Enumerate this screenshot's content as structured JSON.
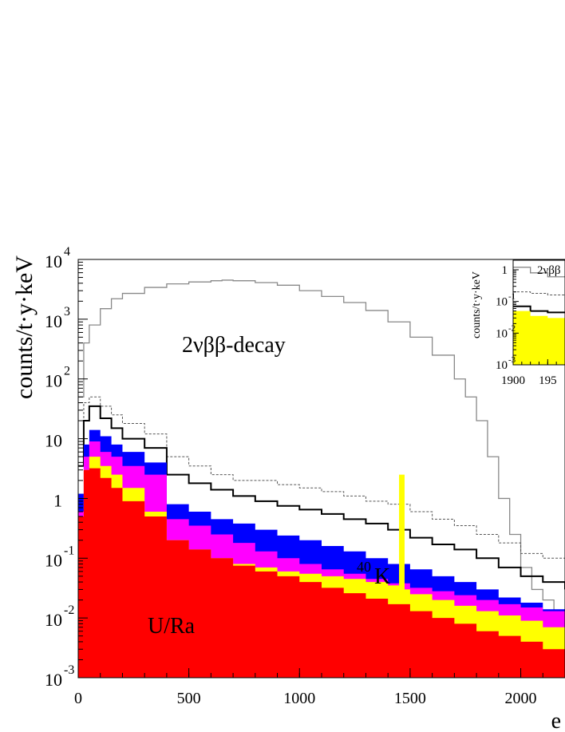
{
  "chart_data": [
    {
      "type": "area",
      "title": "",
      "ylabel": "counts/t·y·keV",
      "xlabel_visible": "e",
      "x_ticks": [
        "0",
        "500",
        "1000",
        "1500",
        "2000"
      ],
      "y_scale": "log",
      "y_ticks": [
        {
          "base": "10",
          "exp": "-3"
        },
        {
          "base": "10",
          "exp": "-2"
        },
        {
          "base": "10",
          "exp": "-1"
        },
        {
          "base": "1",
          "exp": ""
        },
        {
          "base": "10",
          "exp": ""
        },
        {
          "base": "10",
          "exp": "2"
        },
        {
          "base": "10",
          "exp": "3"
        },
        {
          "base": "10",
          "exp": "4"
        }
      ],
      "xlim": [
        0,
        2200
      ],
      "ylim": [
        0.001,
        10000
      ],
      "grid": false,
      "annotations": {
        "two_nu": "2νββ-decay",
        "uranium": "U/Ra",
        "potassium_sup": "40",
        "potassium": "K"
      },
      "colors": {
        "red": "#ff0000",
        "magenta": "#ff00ff",
        "blue": "#0000ff",
        "yellow": "#ffff00",
        "total": "#000000",
        "two_nu": "#888888"
      },
      "bin_width": 25,
      "series": [
        {
          "key": "two_nu",
          "style": "step-gray",
          "x": [
            0,
            25,
            50,
            100,
            150,
            200,
            300,
            400,
            500,
            600,
            650,
            700,
            800,
            900,
            1000,
            1100,
            1200,
            1300,
            1400,
            1500,
            1600,
            1700,
            1750,
            1800,
            1850,
            1900,
            1950,
            2000,
            2050,
            2100,
            2150,
            2200
          ],
          "y": [
            50,
            400,
            800,
            1500,
            2200,
            2700,
            3400,
            3900,
            4200,
            4400,
            4500,
            4400,
            4100,
            3700,
            3000,
            2400,
            1900,
            1400,
            900,
            500,
            250,
            100,
            50,
            20,
            5,
            1,
            0.25,
            0.07,
            0.03,
            0.02,
            0.01,
            0.01
          ]
        },
        {
          "key": "total_dashed",
          "style": "step-dashed",
          "x": [
            0,
            25,
            50,
            100,
            150,
            200,
            300,
            400,
            500,
            600,
            700,
            800,
            900,
            1000,
            1100,
            1200,
            1300,
            1400,
            1500,
            1600,
            1700,
            1800,
            1900,
            2000,
            2100,
            2200
          ],
          "y": [
            5,
            40,
            50,
            35,
            25,
            18,
            12,
            5,
            3.5,
            2.5,
            2,
            2,
            1.7,
            1.5,
            1.3,
            1.1,
            0.9,
            0.8,
            0.6,
            0.45,
            0.35,
            0.25,
            0.18,
            0.12,
            0.1,
            0.08
          ]
        },
        {
          "key": "total",
          "style": "step-black",
          "x": [
            0,
            25,
            50,
            100,
            150,
            200,
            300,
            400,
            500,
            600,
            700,
            800,
            900,
            1000,
            1100,
            1200,
            1300,
            1400,
            1500,
            1600,
            1700,
            1800,
            1900,
            2000,
            2100,
            2200
          ],
          "y": [
            3.5,
            20,
            35,
            22,
            15,
            10,
            7,
            2.5,
            1.8,
            1.4,
            1.1,
            0.9,
            0.75,
            0.65,
            0.55,
            0.45,
            0.38,
            0.3,
            0.22,
            0.17,
            0.14,
            0.1,
            0.07,
            0.05,
            0.04,
            0.03
          ]
        },
        {
          "key": "blue",
          "style": "fill",
          "x": [
            0,
            25,
            50,
            100,
            150,
            200,
            300,
            400,
            500,
            600,
            700,
            800,
            900,
            1000,
            1100,
            1200,
            1300,
            1400,
            1500,
            1600,
            1700,
            1800,
            1900,
            2000,
            2100,
            2200
          ],
          "y": [
            1.2,
            8,
            14,
            11,
            8,
            6,
            4,
            0.8,
            0.6,
            0.45,
            0.38,
            0.3,
            0.24,
            0.2,
            0.16,
            0.13,
            0.1,
            0.08,
            0.065,
            0.05,
            0.04,
            0.03,
            0.022,
            0.018,
            0.014,
            0.012
          ]
        },
        {
          "key": "magenta",
          "style": "fill",
          "x": [
            0,
            25,
            50,
            100,
            150,
            200,
            300,
            400,
            500,
            600,
            700,
            800,
            900,
            1000,
            1100,
            1200,
            1300,
            1400,
            1500,
            1600,
            1700,
            1800,
            1900,
            2000,
            2100,
            2200
          ],
          "y": [
            0.6,
            5,
            9,
            6,
            5,
            3.5,
            2.5,
            0.45,
            0.35,
            0.25,
            0.18,
            0.13,
            0.1,
            0.08,
            0.065,
            0.055,
            0.045,
            0.038,
            0.032,
            0.028,
            0.024,
            0.02,
            0.017,
            0.015,
            0.013,
            0.011
          ]
        },
        {
          "key": "yellow",
          "style": "fill",
          "x": [
            0,
            25,
            50,
            100,
            150,
            200,
            300,
            400,
            500,
            600,
            700,
            800,
            900,
            1000,
            1100,
            1200,
            1300,
            1400,
            1450,
            1475,
            1500,
            1600,
            1700,
            1800,
            1900,
            2000,
            2100,
            2200
          ],
          "y": [
            0.5,
            3,
            5,
            3.5,
            2.5,
            1.5,
            0.6,
            0.2,
            0.14,
            0.1,
            0.08,
            0.07,
            0.06,
            0.055,
            0.05,
            0.045,
            0.04,
            0.035,
            2.5,
            0.03,
            0.025,
            0.02,
            0.016,
            0.013,
            0.011,
            0.009,
            0.007,
            0.006
          ]
        },
        {
          "key": "red",
          "style": "fill",
          "x": [
            0,
            25,
            50,
            100,
            150,
            200,
            300,
            400,
            500,
            600,
            700,
            800,
            900,
            1000,
            1100,
            1200,
            1300,
            1400,
            1500,
            1600,
            1700,
            1800,
            1900,
            2000,
            2100,
            2200
          ],
          "y": [
            0.5,
            3,
            3.2,
            2.2,
            1.5,
            0.9,
            0.5,
            0.2,
            0.14,
            0.1,
            0.075,
            0.06,
            0.05,
            0.04,
            0.032,
            0.026,
            0.021,
            0.017,
            0.013,
            0.01,
            0.008,
            0.006,
            0.005,
            0.004,
            0.003,
            0.0025
          ]
        }
      ]
    },
    {
      "type": "area",
      "title": "",
      "ylabel": "counts/t·y·keV",
      "x_ticks": [
        "1900",
        "195"
      ],
      "y_scale": "log",
      "y_ticks": [
        {
          "base": "10",
          "exp": "-3"
        },
        {
          "base": "10",
          "exp": "-2"
        },
        {
          "base": "10",
          "exp": "-1"
        },
        {
          "base": "1",
          "exp": ""
        }
      ],
      "xlim": [
        1900,
        1975
      ],
      "ylim": [
        0.001,
        2
      ],
      "annotations": {
        "two_nu": "2νββ"
      },
      "series": [
        {
          "key": "two_nu",
          "style": "step-gray",
          "x": [
            1900,
            1925,
            1950
          ],
          "y": [
            1.2,
            0.8,
            0.6
          ]
        },
        {
          "key": "total_dashed",
          "style": "step-dashed",
          "x": [
            1900,
            1925,
            1950
          ],
          "y": [
            0.2,
            0.18,
            0.16
          ]
        },
        {
          "key": "total",
          "style": "step-black",
          "x": [
            1900,
            1925,
            1950
          ],
          "y": [
            0.07,
            0.05,
            0.045
          ]
        },
        {
          "key": "yellow",
          "style": "fill",
          "x": [
            1900,
            1925,
            1950
          ],
          "y": [
            0.05,
            0.035,
            0.03
          ]
        }
      ]
    }
  ]
}
